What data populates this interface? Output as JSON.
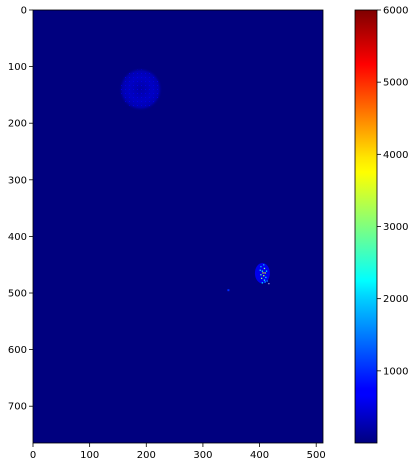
{
  "chart_data": {
    "type": "heatmap",
    "title": "",
    "xlabel": "",
    "ylabel": "",
    "xlim": [
      0,
      512
    ],
    "ylim": [
      765,
      0
    ],
    "x_ticks": [
      0,
      100,
      200,
      300,
      400,
      500
    ],
    "y_ticks": [
      0,
      100,
      200,
      300,
      400,
      500,
      600,
      700
    ],
    "colormap": "jet",
    "background_value": 0,
    "colorbar": {
      "range": [
        0,
        6000
      ],
      "ticks": [
        1000,
        2000,
        3000,
        4000,
        5000,
        6000
      ]
    },
    "features": [
      {
        "name": "faint-ring",
        "center": [
          190,
          140
        ],
        "radius": 38,
        "value": 300
      },
      {
        "name": "bright-spot",
        "center": [
          405,
          465
        ],
        "radius": 12,
        "value": 2500
      },
      {
        "name": "small-dot",
        "center": [
          345,
          495
        ],
        "radius": 2,
        "value": 1000
      }
    ]
  }
}
